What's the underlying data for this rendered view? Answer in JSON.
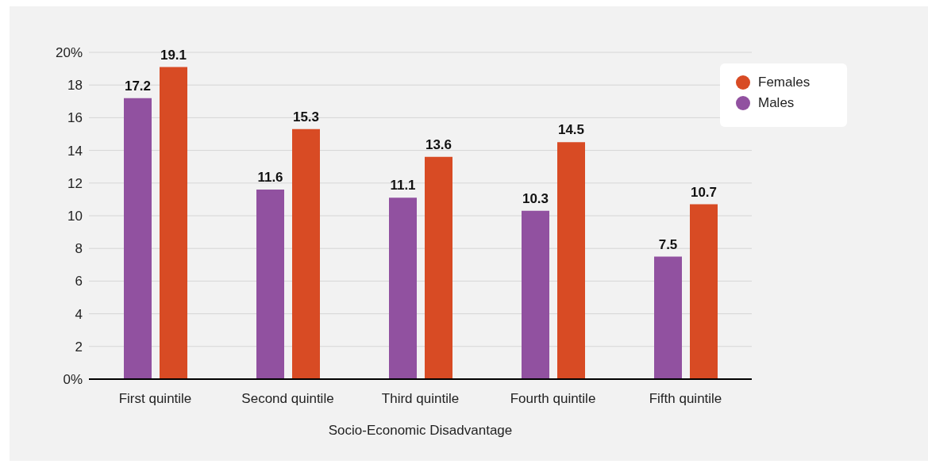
{
  "chart_data": {
    "type": "bar",
    "xlabel": "Socio-Economic Disadvantage",
    "categories": [
      "First quintile",
      "Second quintile",
      "Third quintile",
      "Fourth quintile",
      "Fifth quintile"
    ],
    "series": [
      {
        "name": "Males",
        "color": "#9151a0",
        "values": [
          17.2,
          11.6,
          11.1,
          10.3,
          7.5
        ]
      },
      {
        "name": "Females",
        "color": "#d84b24",
        "values": [
          19.1,
          15.3,
          13.6,
          14.5,
          10.7
        ]
      }
    ],
    "ylim": [
      0,
      20
    ],
    "yticks": [
      {
        "value": 0,
        "label": "0%"
      },
      2,
      4,
      6,
      8,
      10,
      12,
      14,
      16,
      18,
      {
        "value": 20,
        "label": "20%"
      }
    ],
    "grid": "y",
    "legend": "top right",
    "data_labels": true
  }
}
